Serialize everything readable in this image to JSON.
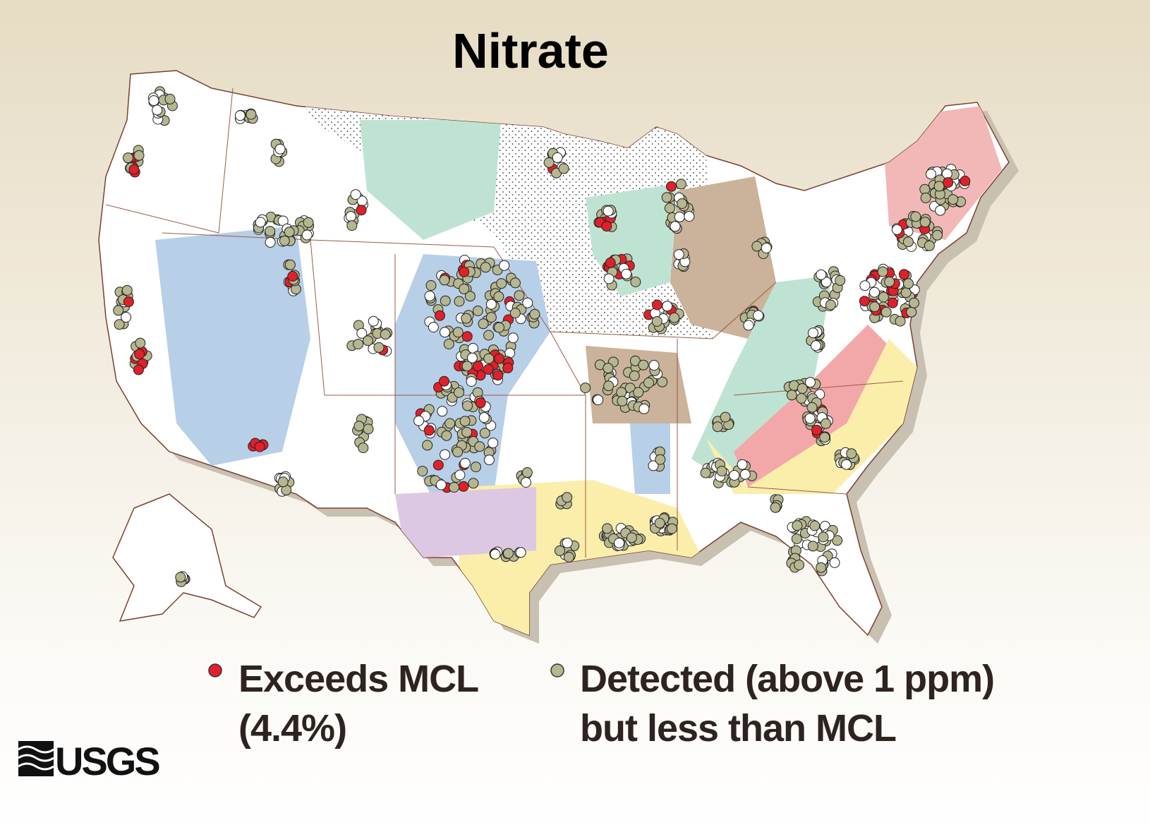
{
  "title": "Nitrate",
  "legend": [
    {
      "label_lines": [
        "Exceeds MCL",
        "(4.4%)"
      ],
      "color": "#e0202a"
    },
    {
      "label_lines": [
        "Detected (above 1 ppm)",
        "but less than MCL"
      ],
      "color": "#b6b690"
    }
  ],
  "logo": "USGS"
}
